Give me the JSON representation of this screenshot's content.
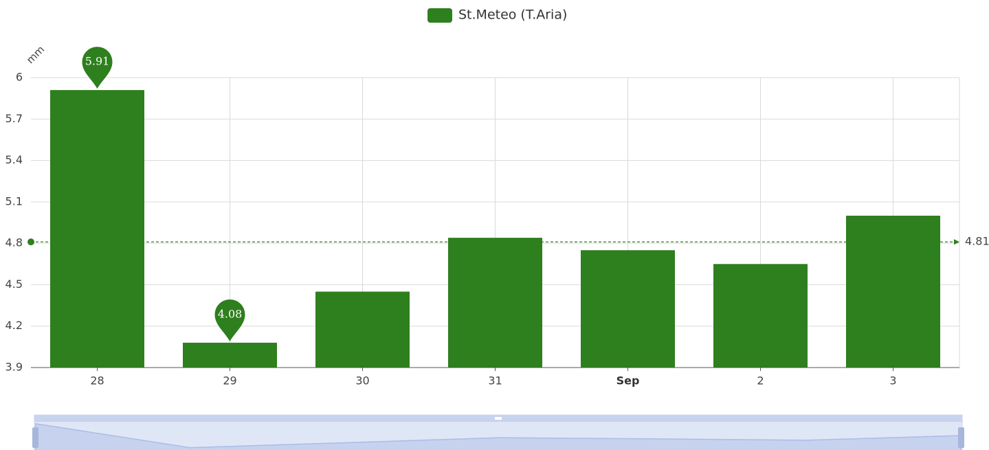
{
  "chart_data": {
    "type": "bar",
    "legend": "St.Meteo (T.Aria)",
    "y_axis_label": "mm",
    "categories": [
      "28",
      "29",
      "30",
      "31",
      "Sep",
      "2",
      "3"
    ],
    "series": [
      {
        "name": "St.Meteo (T.Aria)",
        "color": "#2e7f1d",
        "values": [
          5.91,
          4.08,
          4.45,
          4.84,
          4.75,
          4.65,
          5.0
        ]
      }
    ],
    "ylim": [
      3.9,
      6
    ],
    "yticks": [
      3.9,
      4.2,
      4.5,
      4.8,
      5.1,
      5.4,
      5.7,
      6
    ],
    "mark_line": {
      "value": 4.81
    },
    "grid": true
  }
}
